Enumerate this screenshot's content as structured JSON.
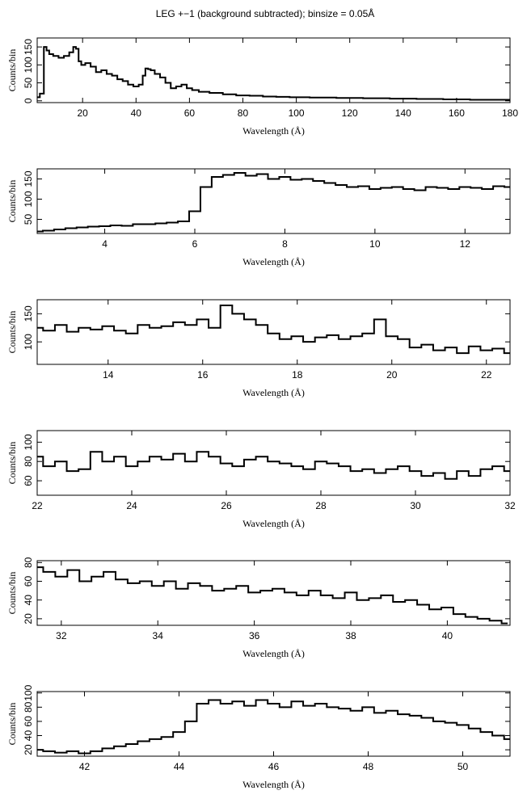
{
  "title": "LEG +−1 (background subtracted); binsize = 0.05Å",
  "chart_data": [
    {
      "type": "step",
      "xlabel": "Wavelength (Å)",
      "ylabel": "Counts/bin",
      "color": "#000000",
      "xlim": [
        3,
        180
      ],
      "xticks": [
        20,
        40,
        60,
        80,
        100,
        120,
        140,
        160,
        180
      ],
      "ylim": [
        -5,
        175
      ],
      "yticks": [
        0,
        50,
        100,
        150
      ],
      "x": [
        3,
        5,
        6,
        7,
        8,
        10,
        12,
        14,
        16,
        17,
        18,
        19,
        20,
        22,
        24,
        26,
        28,
        30,
        32,
        34,
        36,
        38,
        40,
        42,
        43,
        44,
        45,
        46,
        48,
        50,
        52,
        54,
        56,
        58,
        60,
        62,
        65,
        70,
        75,
        80,
        85,
        90,
        95,
        100,
        110,
        120,
        130,
        140,
        150,
        160,
        170,
        180
      ],
      "values": [
        10,
        20,
        150,
        140,
        130,
        125,
        120,
        125,
        135,
        150,
        145,
        110,
        100,
        105,
        95,
        80,
        85,
        75,
        70,
        60,
        55,
        45,
        40,
        45,
        70,
        90,
        88,
        85,
        75,
        65,
        50,
        35,
        40,
        45,
        35,
        30,
        25,
        22,
        18,
        15,
        14,
        12,
        11,
        10,
        9,
        8,
        7,
        6,
        5,
        4,
        3,
        3
      ]
    },
    {
      "type": "step",
      "xlabel": "Wavelength (Å)",
      "ylabel": "Counts/bin",
      "color": "#000000",
      "xlim": [
        2.5,
        13
      ],
      "xticks": [
        4,
        6,
        8,
        10,
        12
      ],
      "ylim": [
        15,
        175
      ],
      "yticks": [
        50,
        100,
        150
      ],
      "x": [
        2.5,
        2.75,
        3,
        3.25,
        3.5,
        3.75,
        4,
        4.25,
        4.5,
        4.75,
        5,
        5.25,
        5.5,
        5.75,
        6,
        6.25,
        6.5,
        6.75,
        7,
        7.25,
        7.5,
        7.75,
        8,
        8.25,
        8.5,
        8.75,
        9,
        9.25,
        9.5,
        9.75,
        10,
        10.25,
        10.5,
        10.75,
        11,
        11.25,
        11.5,
        11.75,
        12,
        12.25,
        12.5,
        12.75,
        13
      ],
      "values": [
        20,
        22,
        25,
        28,
        30,
        32,
        33,
        35,
        34,
        38,
        38,
        40,
        42,
        45,
        70,
        130,
        155,
        160,
        165,
        158,
        162,
        150,
        155,
        148,
        150,
        145,
        140,
        135,
        130,
        132,
        125,
        128,
        130,
        125,
        122,
        130,
        128,
        125,
        130,
        128,
        125,
        132,
        130
      ]
    },
    {
      "type": "step",
      "xlabel": "Wavelength (Å)",
      "ylabel": "Counts/bin",
      "color": "#000000",
      "xlim": [
        12.5,
        22.5
      ],
      "xticks": [
        14,
        16,
        18,
        20,
        22
      ],
      "ylim": [
        60,
        175
      ],
      "yticks": [
        100,
        150
      ],
      "x": [
        12.5,
        12.75,
        13,
        13.25,
        13.5,
        13.75,
        14,
        14.25,
        14.5,
        14.75,
        15,
        15.25,
        15.5,
        15.75,
        16,
        16.25,
        16.5,
        16.75,
        17,
        17.25,
        17.5,
        17.75,
        18,
        18.25,
        18.5,
        18.75,
        19,
        19.25,
        19.5,
        19.75,
        20,
        20.25,
        20.5,
        20.75,
        21,
        21.25,
        21.5,
        21.75,
        22,
        22.25,
        22.5
      ],
      "values": [
        125,
        120,
        130,
        118,
        125,
        122,
        128,
        120,
        115,
        130,
        125,
        128,
        135,
        130,
        140,
        125,
        165,
        150,
        140,
        130,
        115,
        105,
        110,
        100,
        108,
        112,
        105,
        110,
        115,
        140,
        110,
        105,
        90,
        95,
        85,
        90,
        80,
        92,
        85,
        88,
        80
      ]
    },
    {
      "type": "step",
      "xlabel": "Wavelength (Å)",
      "ylabel": "Counts/bin",
      "color": "#000000",
      "xlim": [
        22,
        32
      ],
      "xticks": [
        22,
        24,
        26,
        28,
        30,
        32
      ],
      "ylim": [
        45,
        112
      ],
      "yticks": [
        60,
        80,
        100
      ],
      "x": [
        22,
        22.25,
        22.5,
        22.75,
        23,
        23.25,
        23.5,
        23.75,
        24,
        24.25,
        24.5,
        24.75,
        25,
        25.25,
        25.5,
        25.75,
        26,
        26.25,
        26.5,
        26.75,
        27,
        27.25,
        27.5,
        27.75,
        28,
        28.25,
        28.5,
        28.75,
        29,
        29.25,
        29.5,
        29.75,
        30,
        30.25,
        30.5,
        30.75,
        31,
        31.25,
        31.5,
        31.75,
        32
      ],
      "values": [
        85,
        75,
        80,
        70,
        72,
        90,
        80,
        85,
        75,
        80,
        85,
        82,
        88,
        80,
        90,
        85,
        78,
        75,
        82,
        85,
        80,
        78,
        75,
        72,
        80,
        78,
        75,
        70,
        72,
        68,
        72,
        75,
        70,
        65,
        68,
        62,
        70,
        65,
        72,
        75,
        70
      ]
    },
    {
      "type": "step",
      "xlabel": "Wavelength (Å)",
      "ylabel": "Counts/bin",
      "color": "#000000",
      "xlim": [
        31.5,
        41.3
      ],
      "xticks": [
        32,
        34,
        36,
        38,
        40
      ],
      "ylim": [
        13,
        82
      ],
      "yticks": [
        20,
        40,
        60,
        80
      ],
      "x": [
        31.5,
        31.75,
        32,
        32.25,
        32.5,
        32.75,
        33,
        33.25,
        33.5,
        33.75,
        34,
        34.25,
        34.5,
        34.75,
        35,
        35.25,
        35.5,
        35.75,
        36,
        36.25,
        36.5,
        36.75,
        37,
        37.25,
        37.5,
        37.75,
        38,
        38.25,
        38.5,
        38.75,
        39,
        39.25,
        39.5,
        39.75,
        40,
        40.25,
        40.5,
        40.75,
        41,
        41.25
      ],
      "values": [
        75,
        70,
        65,
        72,
        60,
        65,
        70,
        62,
        58,
        60,
        55,
        60,
        52,
        58,
        55,
        50,
        52,
        55,
        48,
        50,
        52,
        48,
        45,
        50,
        45,
        42,
        48,
        40,
        42,
        45,
        38,
        40,
        35,
        30,
        32,
        25,
        22,
        20,
        18,
        15
      ]
    },
    {
      "type": "step",
      "xlabel": "Wavelength (Å)",
      "ylabel": "Counts/bin",
      "color": "#000000",
      "xlim": [
        41,
        51
      ],
      "xticks": [
        42,
        44,
        46,
        48,
        50
      ],
      "ylim": [
        11,
        102
      ],
      "yticks": [
        20,
        40,
        60,
        80,
        100
      ],
      "x": [
        41,
        41.25,
        41.5,
        41.75,
        42,
        42.25,
        42.5,
        42.75,
        43,
        43.25,
        43.5,
        43.75,
        44,
        44.25,
        44.5,
        44.75,
        45,
        45.25,
        45.5,
        45.75,
        46,
        46.25,
        46.5,
        46.75,
        47,
        47.25,
        47.5,
        47.75,
        48,
        48.25,
        48.5,
        48.75,
        49,
        49.25,
        49.5,
        49.75,
        50,
        50.25,
        50.5,
        50.75,
        51
      ],
      "values": [
        20,
        18,
        16,
        18,
        15,
        18,
        22,
        25,
        28,
        32,
        35,
        38,
        45,
        60,
        85,
        90,
        85,
        88,
        82,
        90,
        85,
        80,
        88,
        82,
        85,
        80,
        78,
        75,
        80,
        72,
        75,
        70,
        68,
        65,
        60,
        58,
        55,
        50,
        45,
        40,
        35
      ]
    }
  ]
}
